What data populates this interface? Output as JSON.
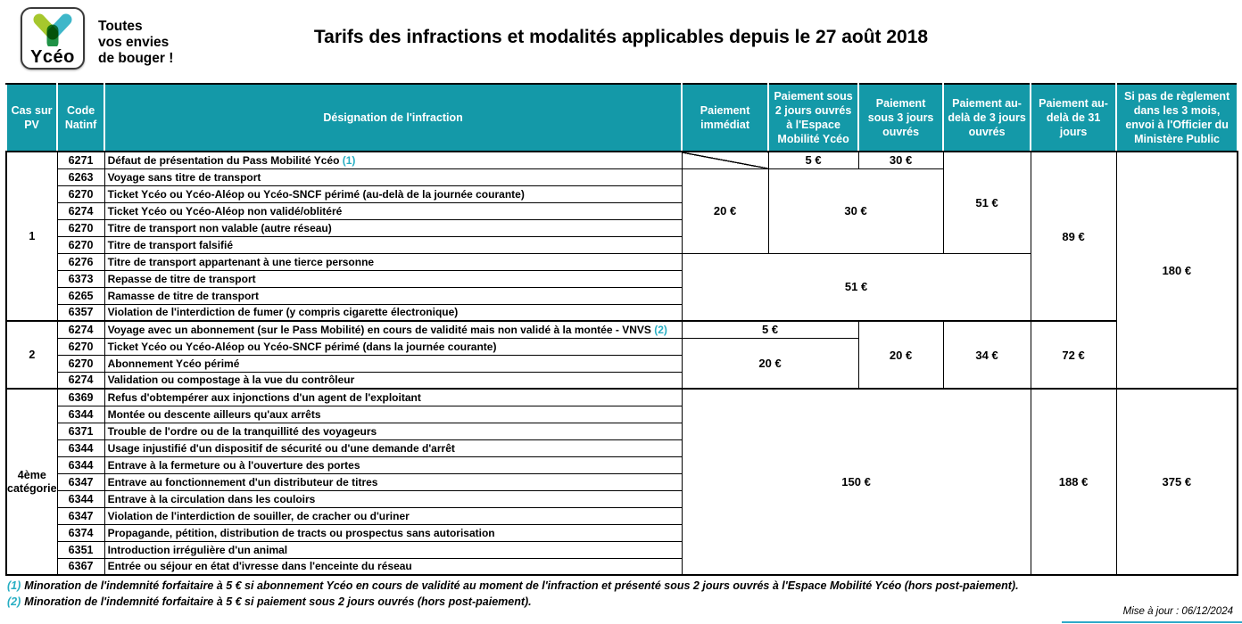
{
  "logo": {
    "brand": "Ycéo",
    "tagline_lines": [
      "Toutes",
      "vos envies",
      "de bouger !"
    ]
  },
  "title": "Tarifs des infractions et modalités applicables depuis le 27 août 2018",
  "colors": {
    "header_teal": "#1499A8",
    "note_teal": "#27AEC3",
    "logo_light_green": "#A6C72D",
    "logo_teal": "#3EB7C9",
    "logo_dark_green": "#1F9246"
  },
  "table": {
    "headers": [
      "Cas sur PV",
      "Code Natinf",
      "Désignation de l'infraction",
      "Paiement immédiat",
      "Paiement sous 2 jours ouvrés à l'Espace Mobilité Ycéo",
      "Paiement sous 3 jours ouvrés",
      "Paiement au-delà de 3 jours ouvrés",
      "Paiement au-delà de 31 jours",
      "Si pas de règlement dans les 3 mois, envoi à l'Officier du Ministère Public"
    ],
    "groups": [
      {
        "label": "1",
        "rows": [
          {
            "code": "6271",
            "text": "Défaut de présentation du Pass Mobilité Ycéo",
            "note": "(1)"
          },
          {
            "code": "6263",
            "text": "Voyage sans titre de transport"
          },
          {
            "code": "6270",
            "text": "Ticket Ycéo ou Ycéo-Aléop ou Ycéo-SNCF périmé (au-delà de la journée courante)"
          },
          {
            "code": "6274",
            "text": "Ticket Ycéo ou Ycéo-Aléop non validé/oblitéré"
          },
          {
            "code": "6270",
            "text": "Titre de transport non valable (autre réseau)"
          },
          {
            "code": "6270",
            "text": "Titre de transport falsifié"
          },
          {
            "code": "6276",
            "text": "Titre de transport appartenant à une tierce personne"
          },
          {
            "code": "6373",
            "text": "Repasse de titre de transport"
          },
          {
            "code": "6265",
            "text": "Ramasse de titre de transport"
          },
          {
            "code": "6357",
            "text": "Violation de l'interdiction de fumer (y compris cigarette électronique)"
          }
        ],
        "price_cells": [
          {
            "row": 0,
            "col": 0,
            "value": "",
            "diagonal": true
          },
          {
            "row": 0,
            "col": 1,
            "value": "5 €"
          },
          {
            "row": 0,
            "col": 2,
            "value": "30 €"
          },
          {
            "row": 0,
            "col": 3,
            "rowspan": 6,
            "value": "51 €"
          },
          {
            "row": 0,
            "col": 4,
            "rowspan": 10,
            "value": "89 €"
          },
          {
            "row": 0,
            "col": 5,
            "rowspan": 14,
            "value": "180 €"
          },
          {
            "row": 1,
            "col": 0,
            "rowspan": 5,
            "value": "20 €"
          },
          {
            "row": 1,
            "col": 1,
            "colspan": 2,
            "rowspan": 5,
            "value": "30 €"
          },
          {
            "row": 6,
            "col": 0,
            "colspan": 4,
            "rowspan": 4,
            "value": "51 €"
          }
        ]
      },
      {
        "label": "2",
        "rows": [
          {
            "code": "6274",
            "text": "Voyage avec un abonnement (sur le Pass Mobilité) en cours de validité mais non validé à la montée - VNVS",
            "note": "(2)"
          },
          {
            "code": "6270",
            "text": "Ticket Ycéo ou Ycéo-Aléop ou Ycéo-SNCF périmé (dans la journée courante)"
          },
          {
            "code": "6270",
            "text": "Abonnement Ycéo périmé"
          },
          {
            "code": "6274",
            "text": "Validation ou compostage à la vue du contrôleur"
          }
        ],
        "price_cells": [
          {
            "row": 0,
            "col": 0,
            "colspan": 2,
            "value": "5 €"
          },
          {
            "row": 0,
            "col": 2,
            "rowspan": 4,
            "value": "20 €"
          },
          {
            "row": 0,
            "col": 3,
            "rowspan": 4,
            "value": "34 €"
          },
          {
            "row": 0,
            "col": 4,
            "rowspan": 4,
            "value": "72 €"
          },
          {
            "row": 1,
            "col": 0,
            "colspan": 2,
            "rowspan": 3,
            "value": "20 €"
          }
        ]
      },
      {
        "label": "4ème catégorie",
        "rows": [
          {
            "code": "6369",
            "text": "Refus d'obtempérer aux injonctions d'un agent de l'exploitant"
          },
          {
            "code": "6344",
            "text": "Montée ou descente ailleurs qu'aux arrêts"
          },
          {
            "code": "6371",
            "text": "Trouble de l'ordre ou de la tranquillité des voyageurs"
          },
          {
            "code": "6344",
            "text": "Usage injustifié d'un dispositif de sécurité ou d'une demande d'arrêt"
          },
          {
            "code": "6344",
            "text": "Entrave à la fermeture ou à l'ouverture des portes"
          },
          {
            "code": "6347",
            "text": "Entrave au fonctionnement d'un distributeur de titres"
          },
          {
            "code": "6344",
            "text": "Entrave à la circulation dans les couloirs"
          },
          {
            "code": "6347",
            "text": "Violation de l'interdiction de souiller, de cracher ou d'uriner"
          },
          {
            "code": "6374",
            "text": "Propagande, pétition, distribution de tracts ou prospectus sans autorisation"
          },
          {
            "code": "6351",
            "text": "Introduction irrégulière d'un animal"
          },
          {
            "code": "6367",
            "text": "Entrée ou séjour en état d'ivresse dans l'enceinte du réseau"
          }
        ],
        "price_cells": [
          {
            "row": 0,
            "col": 0,
            "colspan": 4,
            "rowspan": 11,
            "value": "150 €"
          },
          {
            "row": 0,
            "col": 4,
            "rowspan": 11,
            "value": "188 €"
          },
          {
            "row": 0,
            "col": 5,
            "rowspan": 11,
            "value": "375 €"
          }
        ]
      }
    ]
  },
  "footnotes": [
    {
      "marker": "(1)",
      "text": "Minoration de l'indemnité forfaitaire à 5 € si abonnement Ycéo en cours de validité au moment de l'infraction et présenté sous 2 jours ouvrés à l'Espace Mobilité Ycéo (hors post-paiement)."
    },
    {
      "marker": "(2)",
      "text": "Minoration de l'indemnité forfaitaire à 5 € si paiement sous 2 jours ouvrés (hors post-paiement)."
    }
  ],
  "updated": "Mise à jour : 06/12/2024"
}
